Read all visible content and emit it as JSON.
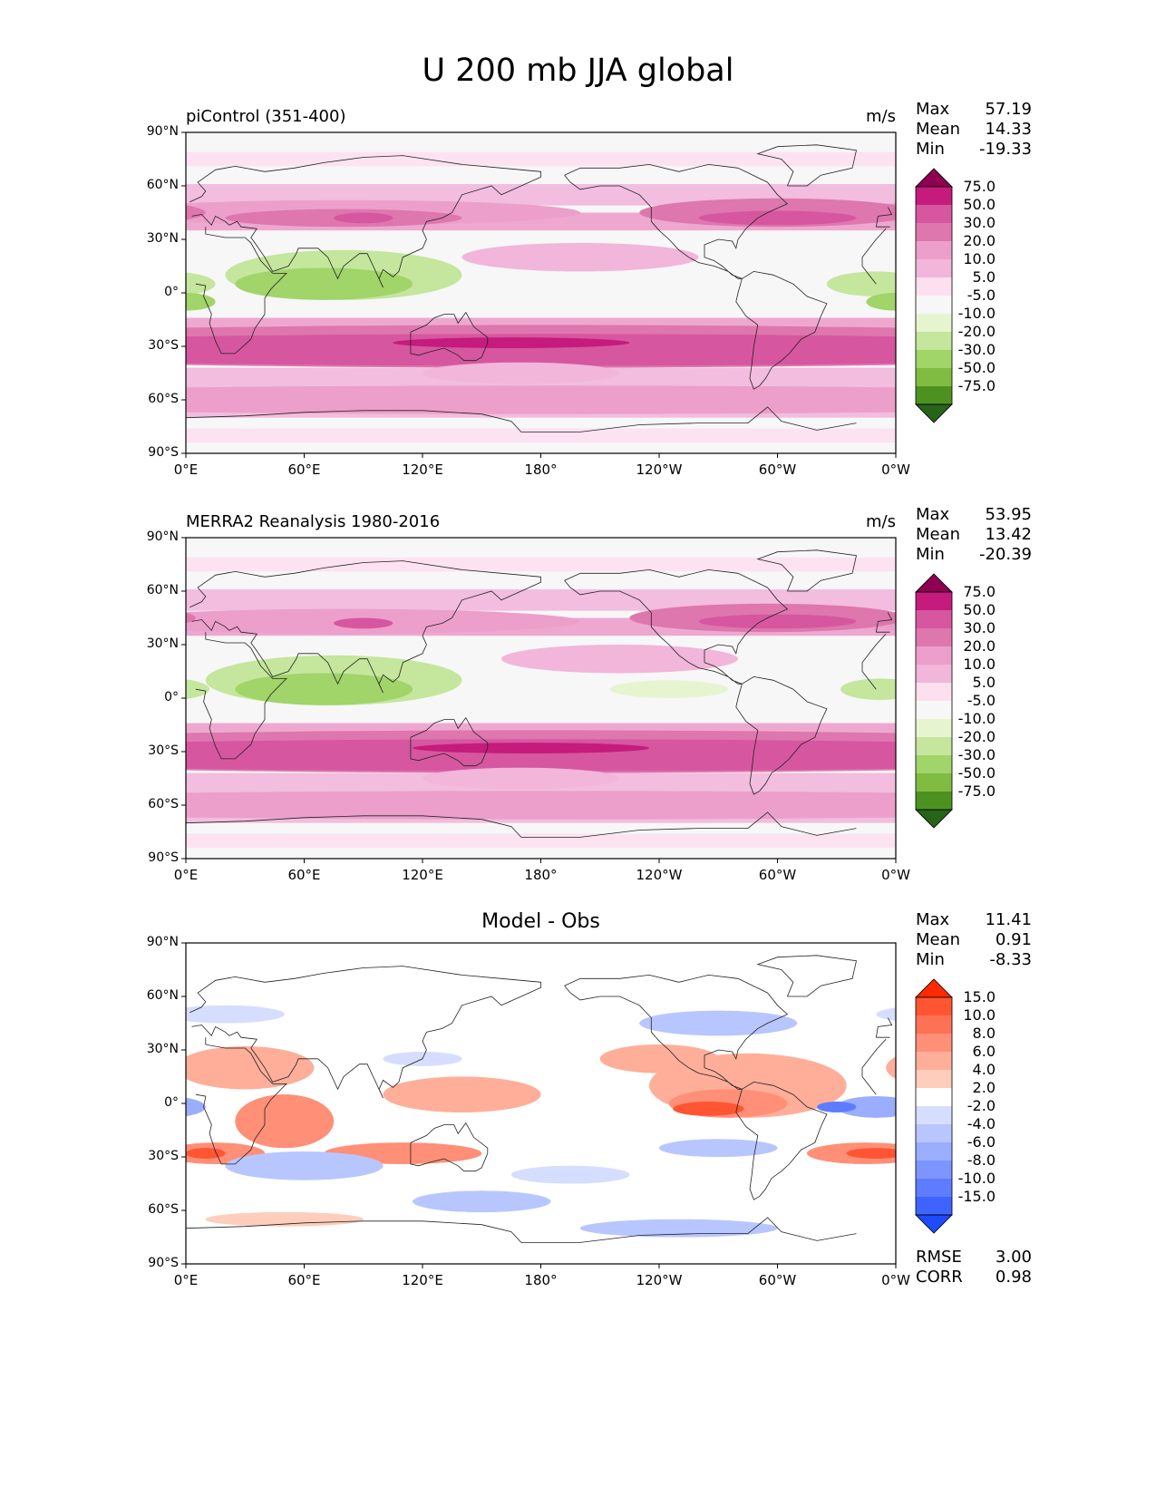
{
  "title": "U 200 mb JJA global",
  "lat_labels": [
    "90°N",
    "60°N",
    "30°N",
    "0°",
    "30°S",
    "60°S",
    "90°S"
  ],
  "lon_labels": [
    "0°E",
    "60°E",
    "120°E",
    "180°",
    "120°W",
    "60°W",
    "0°W"
  ],
  "panels": [
    {
      "title": "piControl (351-400)",
      "title_position": "left",
      "units": "m/s",
      "stats": {
        "max_label": "Max",
        "max": "57.19",
        "mean_label": "Mean",
        "mean": "14.33",
        "min_label": "Min",
        "min": "-19.33"
      },
      "colorbar": {
        "labels": [
          "75.0",
          "50.0",
          "30.0",
          "20.0",
          "10.0",
          "5.0",
          "-5.0",
          "-10.0",
          "-20.0",
          "-30.0",
          "-50.0",
          "-75.0"
        ],
        "colors": [
          "#8e0152",
          "#c51b7d",
          "#d6579f",
          "#de77ae",
          "#ec9fcb",
          "#f1b6da",
          "#fde0ef",
          "#f7f7f7",
          "#e6f5d0",
          "#c4e69d",
          "#a1d469",
          "#7fbc41",
          "#4d9221",
          "#276419"
        ]
      }
    },
    {
      "title": "MERRA2 Reanalysis 1980-2016",
      "title_position": "left",
      "units": "m/s",
      "stats": {
        "max_label": "Max",
        "max": "53.95",
        "mean_label": "Mean",
        "mean": "13.42",
        "min_label": "Min",
        "min": "-20.39"
      },
      "colorbar": {
        "labels": [
          "75.0",
          "50.0",
          "30.0",
          "20.0",
          "10.0",
          "5.0",
          "-5.0",
          "-10.0",
          "-20.0",
          "-30.0",
          "-50.0",
          "-75.0"
        ],
        "colors": [
          "#8e0152",
          "#c51b7d",
          "#d6579f",
          "#de77ae",
          "#ec9fcb",
          "#f1b6da",
          "#fde0ef",
          "#f7f7f7",
          "#e6f5d0",
          "#c4e69d",
          "#a1d469",
          "#7fbc41",
          "#4d9221",
          "#276419"
        ]
      }
    },
    {
      "title": "Model - Obs",
      "title_position": "center",
      "units": "",
      "stats": {
        "max_label": "Max",
        "max": "11.41",
        "mean_label": "Mean",
        "mean": "0.91",
        "min_label": "Min",
        "min": "-8.33"
      },
      "colorbar": {
        "labels": [
          "15.0",
          "10.0",
          "8.0",
          "6.0",
          "4.0",
          "2.0",
          "-2.0",
          "-4.0",
          "-6.0",
          "-8.0",
          "-10.0",
          "-15.0"
        ],
        "colors": [
          "#ff2a00",
          "#ff5533",
          "#ff7155",
          "#ff8f77",
          "#ffae99",
          "#ffcdbb",
          "#ffffff",
          "#d6deff",
          "#b8c6ff",
          "#9aadff",
          "#7c95ff",
          "#5e7cff",
          "#3f63ff",
          "#1f4bff"
        ]
      },
      "rmse_label": "RMSE",
      "rmse": "3.00",
      "corr_label": "CORR",
      "corr": "0.98"
    }
  ]
}
